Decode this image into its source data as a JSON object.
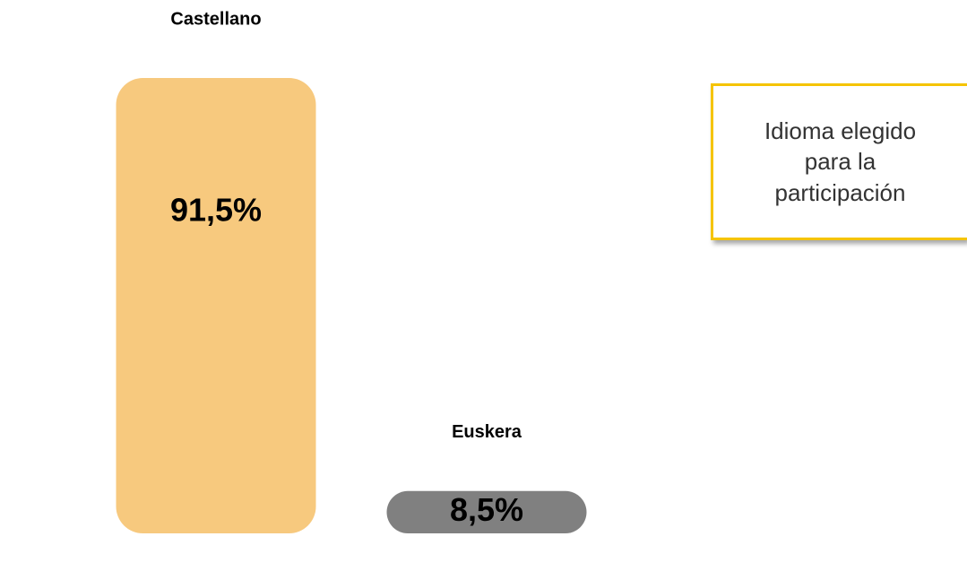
{
  "chart_data": {
    "type": "bar",
    "annotation": "Idioma elegido para la participación",
    "categories": [
      "Castellano",
      "Euskera"
    ],
    "values": [
      91.5,
      8.5
    ],
    "value_labels": [
      "91,5%",
      "8,5%"
    ],
    "colors": [
      "#f7c97e",
      "#808080"
    ]
  }
}
